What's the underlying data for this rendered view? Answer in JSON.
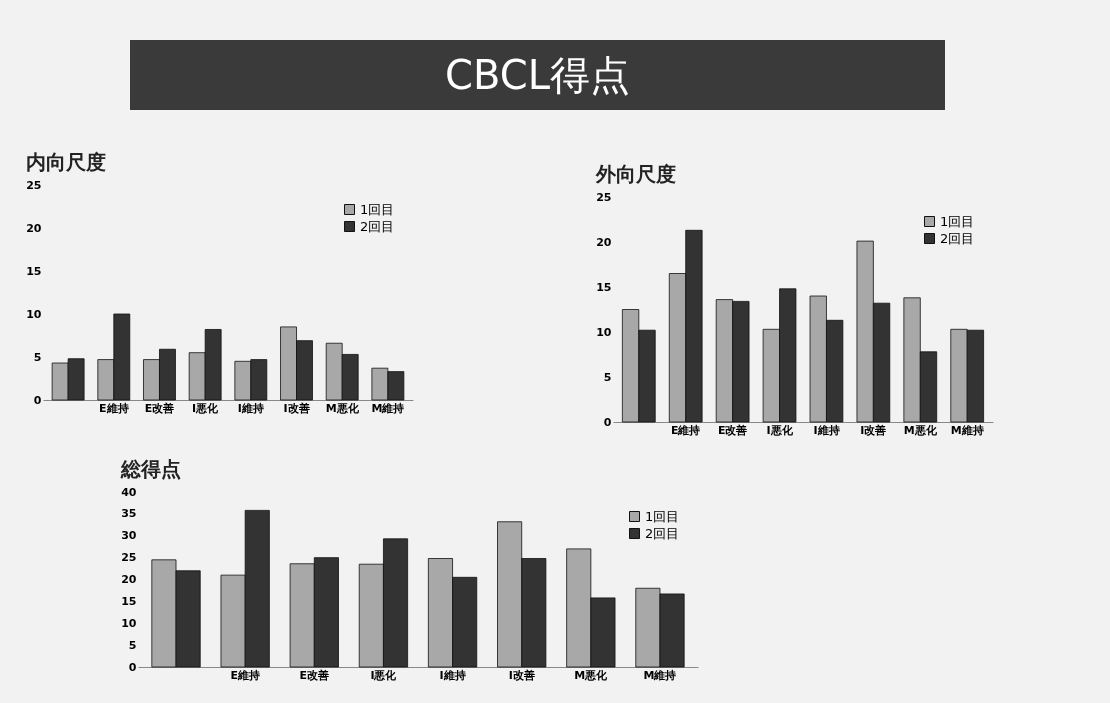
{
  "chart_data": [
    {
      "type": "other",
      "title": "CBCL得点"
    },
    {
      "type": "bar",
      "title": "内向尺度",
      "categories": [
        null,
        "E維持",
        "E改善",
        "I悪化",
        "I維持",
        "I改善",
        "M悪化",
        "M維持"
      ],
      "series": [
        {
          "name": "1回目",
          "color": "#a8a8a8",
          "values": [
            4.3,
            4.7,
            4.7,
            5.5,
            4.5,
            8.5,
            6.6,
            3.7
          ]
        },
        {
          "name": "2回目",
          "color": "#333333",
          "values": [
            4.8,
            10.0,
            5.9,
            8.2,
            4.7,
            6.9,
            5.3,
            3.3
          ]
        }
      ],
      "ylim": [
        0,
        25
      ],
      "yticks": [
        0,
        5,
        10,
        15,
        20,
        25
      ],
      "grid": false,
      "legend": "top right"
    },
    {
      "type": "bar",
      "title": "外向尺度",
      "categories": [
        null,
        "E維持",
        "E改善",
        "I悪化",
        "I維持",
        "I改善",
        "M悪化",
        "M維持"
      ],
      "series": [
        {
          "name": "1回目",
          "color": "#a8a8a8",
          "values": [
            12.5,
            16.5,
            13.6,
            10.3,
            14.0,
            20.1,
            13.8,
            10.3
          ]
        },
        {
          "name": "2回目",
          "color": "#333333",
          "values": [
            10.2,
            21.3,
            13.4,
            14.8,
            11.3,
            13.2,
            7.8,
            10.2
          ]
        }
      ],
      "ylim": [
        0,
        25
      ],
      "yticks": [
        0,
        5,
        10,
        15,
        20,
        25
      ],
      "grid": false,
      "legend": "top right"
    },
    {
      "type": "bar",
      "title": "総得点",
      "categories": [
        null,
        "E維持",
        "E改善",
        "I悪化",
        "I維持",
        "I改善",
        "M悪化",
        "M維持"
      ],
      "series": [
        {
          "name": "1回目",
          "color": "#a8a8a8",
          "values": [
            24.5,
            21.0,
            23.6,
            23.5,
            24.8,
            33.2,
            27.0,
            18.0
          ]
        },
        {
          "name": "2回目",
          "color": "#333333",
          "values": [
            22.0,
            35.8,
            25.0,
            29.3,
            20.5,
            24.8,
            15.8,
            16.7
          ]
        }
      ],
      "ylim": [
        0,
        40
      ],
      "yticks": [
        0,
        5,
        10,
        15,
        20,
        25,
        30,
        35,
        40
      ],
      "grid": false,
      "legend": "top right"
    }
  ]
}
